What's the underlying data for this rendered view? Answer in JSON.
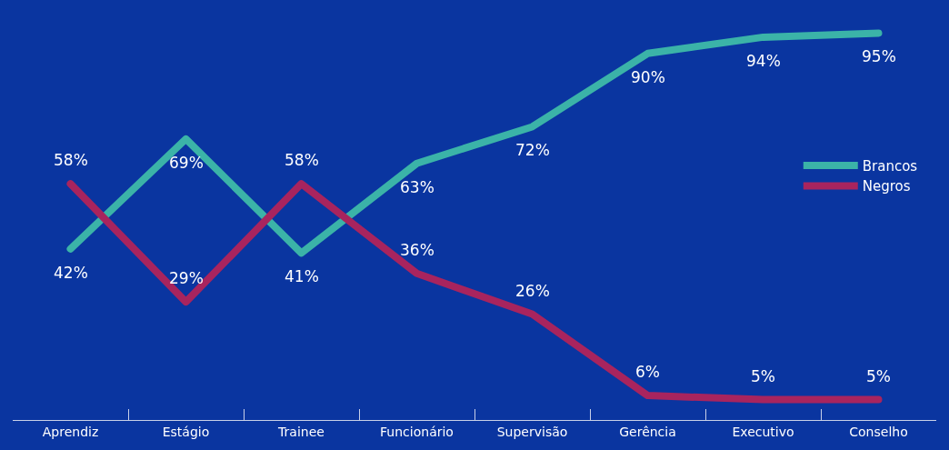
{
  "chart_data": {
    "type": "line",
    "categories": [
      "Aprendiz",
      "Estágio",
      "Trainee",
      "Funcionário",
      "Supervisão",
      "Gerência",
      "Executivo",
      "Conselho"
    ],
    "series": [
      {
        "name": "Brancos",
        "color": "#3bb3a8",
        "values": [
          42,
          69,
          41,
          63,
          72,
          90,
          94,
          95
        ],
        "value_labels": [
          "42%",
          "69%",
          "41%",
          "63%",
          "72%",
          "90%",
          "94%",
          "95%"
        ]
      },
      {
        "name": "Negros",
        "color": "#a8245e",
        "values": [
          58,
          29,
          58,
          36,
          26,
          6,
          5,
          5
        ],
        "value_labels": [
          "58%",
          "29%",
          "58%",
          "36%",
          "26%",
          "6%",
          "5%",
          "5%"
        ]
      }
    ],
    "tick_labels": "x",
    "grid": false,
    "legend": "right",
    "marker": "none",
    "line_style": "solid"
  }
}
